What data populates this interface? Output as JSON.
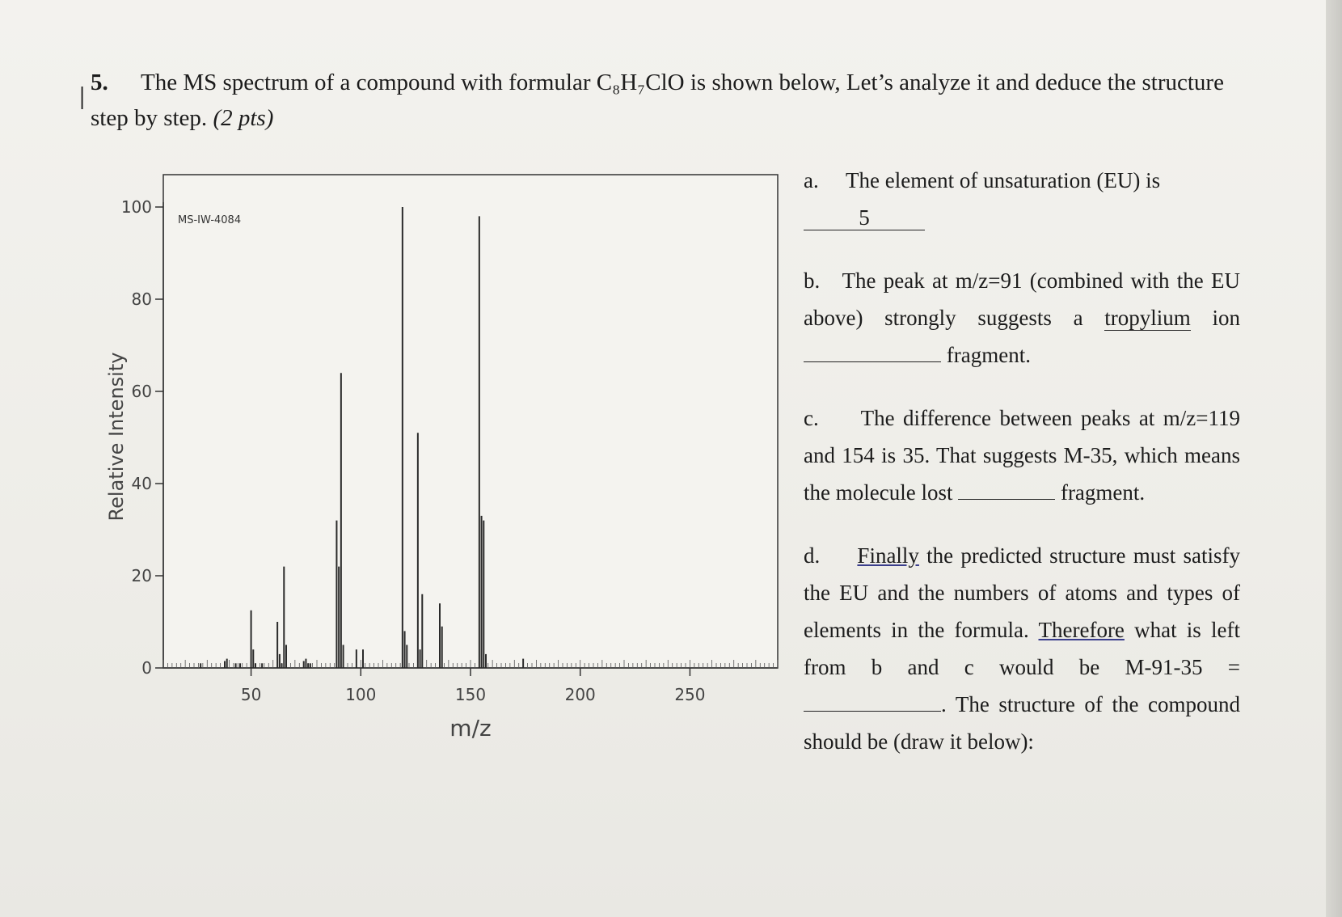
{
  "question": {
    "number": "5.",
    "text": "The MS spectrum of a compound with formular C₈H₇ClO is shown below, Let’s analyze it and deduce the structure step by step.",
    "points": "(2 pts)"
  },
  "chart_data": {
    "type": "bar",
    "title": "",
    "inset_label": "MS-IW-4084",
    "xlabel": "m/z",
    "ylabel": "Relative Intensity",
    "xlim": [
      10,
      290
    ],
    "ylim": [
      0,
      100
    ],
    "x_ticks": [
      50,
      100,
      150,
      200,
      250
    ],
    "y_ticks": [
      0,
      20,
      40,
      60,
      80,
      100
    ],
    "grid": false,
    "peaks": [
      {
        "mz": 27,
        "intensity": 1
      },
      {
        "mz": 38,
        "intensity": 1.5
      },
      {
        "mz": 39,
        "intensity": 2
      },
      {
        "mz": 43,
        "intensity": 1
      },
      {
        "mz": 45,
        "intensity": 1
      },
      {
        "mz": 50,
        "intensity": 12.5
      },
      {
        "mz": 51,
        "intensity": 4
      },
      {
        "mz": 52,
        "intensity": 1
      },
      {
        "mz": 55,
        "intensity": 1
      },
      {
        "mz": 62,
        "intensity": 10
      },
      {
        "mz": 63,
        "intensity": 3
      },
      {
        "mz": 64,
        "intensity": 1
      },
      {
        "mz": 65,
        "intensity": 22
      },
      {
        "mz": 66,
        "intensity": 5
      },
      {
        "mz": 74,
        "intensity": 1.5
      },
      {
        "mz": 75,
        "intensity": 2
      },
      {
        "mz": 76,
        "intensity": 1
      },
      {
        "mz": 77,
        "intensity": 1
      },
      {
        "mz": 89,
        "intensity": 32
      },
      {
        "mz": 90,
        "intensity": 22
      },
      {
        "mz": 91,
        "intensity": 64
      },
      {
        "mz": 92,
        "intensity": 5
      },
      {
        "mz": 98,
        "intensity": 4
      },
      {
        "mz": 101,
        "intensity": 4
      },
      {
        "mz": 119,
        "intensity": 100
      },
      {
        "mz": 120,
        "intensity": 8
      },
      {
        "mz": 121,
        "intensity": 5
      },
      {
        "mz": 126,
        "intensity": 51
      },
      {
        "mz": 127,
        "intensity": 4
      },
      {
        "mz": 128,
        "intensity": 16
      },
      {
        "mz": 136,
        "intensity": 14
      },
      {
        "mz": 137,
        "intensity": 9
      },
      {
        "mz": 154,
        "intensity": 98
      },
      {
        "mz": 155,
        "intensity": 33
      },
      {
        "mz": 156,
        "intensity": 32
      },
      {
        "mz": 157,
        "intensity": 3
      },
      {
        "mz": 174,
        "intensity": 2
      }
    ]
  },
  "answers": {
    "a": {
      "letter": "a.",
      "text": "The element of unsaturation (EU) is",
      "blank_value": "5"
    },
    "b": {
      "letter": "b.",
      "text_before": "The peak at m/z=91 (combined with the EU above) strongly suggests a",
      "blank_value": "tropylium",
      "text_mid": "ion",
      "text_after": "fragment."
    },
    "c": {
      "letter": "c.",
      "text": "The difference between peaks at m/z=119 and 154 is 35. That suggests M-35, which means the molecule lost",
      "text_after": "fragment."
    },
    "d": {
      "letter": "d.",
      "word_finally": "Finally",
      "text1": "the predicted structure must satisfy the EU and the numbers of atoms and types of elements in the formula.",
      "word_therefore": "Therefore",
      "text2": "what is left from b and c would be M-91-35 =",
      "text3": ". The structure of the compound should be (draw it below):"
    }
  }
}
